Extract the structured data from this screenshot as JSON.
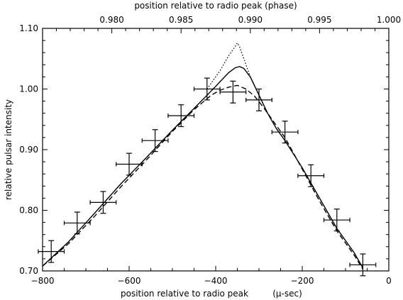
{
  "chart_data": {
    "type": "line",
    "title": "",
    "xlabel": "position relative to radio peak",
    "xlabel_unit": "(μ-sec)",
    "ylabel": "relative pulsar intensity",
    "top_axis_label": "position relative to radio peak (phase)",
    "xlim": [
      -800,
      0
    ],
    "ylim": [
      0.7,
      1.1
    ],
    "top_xlim": [
      0.975,
      1.0
    ],
    "x_ticks": [
      -800,
      -600,
      -400,
      -200,
      0
    ],
    "x_tick_labels": [
      "−800",
      "−600",
      "−400",
      "−200",
      "0"
    ],
    "y_ticks": [
      0.7,
      0.8,
      0.9,
      1.0,
      1.1
    ],
    "y_tick_labels": [
      "0.70",
      "0.80",
      "0.90",
      "1.00",
      "1.10"
    ],
    "top_ticks": [
      0.98,
      0.985,
      0.99,
      0.995,
      1.0
    ],
    "top_tick_labels": [
      "0.980",
      "0.985",
      "0.990",
      "0.995",
      "1.000"
    ],
    "grid": false,
    "colors": {
      "ink": "#000000",
      "background": "#ffffff"
    },
    "series": [
      {
        "style": "points-with-errorbars",
        "points": [
          {
            "x": -780,
            "y": 0.732,
            "xerr": 30,
            "yerr": 0.018
          },
          {
            "x": -720,
            "y": 0.779,
            "xerr": 30,
            "yerr": 0.018
          },
          {
            "x": -660,
            "y": 0.813,
            "xerr": 30,
            "yerr": 0.018
          },
          {
            "x": -600,
            "y": 0.876,
            "xerr": 30,
            "yerr": 0.018
          },
          {
            "x": -540,
            "y": 0.915,
            "xerr": 30,
            "yerr": 0.018
          },
          {
            "x": -480,
            "y": 0.956,
            "xerr": 30,
            "yerr": 0.018
          },
          {
            "x": -420,
            "y": 1.0,
            "xerr": 30,
            "yerr": 0.018
          },
          {
            "x": -360,
            "y": 0.995,
            "xerr": 30,
            "yerr": 0.018
          },
          {
            "x": -300,
            "y": 0.982,
            "xerr": 30,
            "yerr": 0.018
          },
          {
            "x": -240,
            "y": 0.929,
            "xerr": 30,
            "yerr": 0.018
          },
          {
            "x": -180,
            "y": 0.857,
            "xerr": 30,
            "yerr": 0.018
          },
          {
            "x": -120,
            "y": 0.784,
            "xerr": 30,
            "yerr": 0.018
          },
          {
            "x": -60,
            "y": 0.71,
            "xerr": 30,
            "yerr": 0.018
          }
        ]
      },
      {
        "style": "solid",
        "x": [
          -800,
          -740,
          -680,
          -620,
          -560,
          -500,
          -450,
          -410,
          -390,
          -370,
          -355,
          -345,
          -335,
          -320,
          -300,
          -280,
          -260,
          -240,
          -200,
          -160,
          -120,
          -80,
          -60
        ],
        "y": [
          0.708,
          0.748,
          0.795,
          0.843,
          0.887,
          0.932,
          0.968,
          0.997,
          1.012,
          1.027,
          1.035,
          1.037,
          1.034,
          1.02,
          0.99,
          0.96,
          0.935,
          0.915,
          0.87,
          0.82,
          0.77,
          0.73,
          0.705
        ]
      },
      {
        "style": "dotted",
        "x": [
          -420,
          -390,
          -370,
          -355,
          -350,
          -345,
          -335,
          -320,
          -300,
          -280,
          -260
        ],
        "y": [
          1.0,
          1.03,
          1.055,
          1.07,
          1.076,
          1.07,
          1.05,
          1.02,
          0.99,
          0.96,
          0.935
        ]
      },
      {
        "style": "dashed",
        "x": [
          -800,
          -740,
          -680,
          -620,
          -560,
          -500,
          -450,
          -410,
          -390,
          -370,
          -350,
          -330,
          -310,
          -290,
          -270,
          -240,
          -200,
          -160,
          -120,
          -80,
          -60
        ],
        "y": [
          0.708,
          0.745,
          0.79,
          0.838,
          0.883,
          0.93,
          0.966,
          0.99,
          0.998,
          1.003,
          1.006,
          1.0,
          0.988,
          0.97,
          0.95,
          0.92,
          0.868,
          0.815,
          0.766,
          0.726,
          0.703
        ]
      }
    ]
  }
}
